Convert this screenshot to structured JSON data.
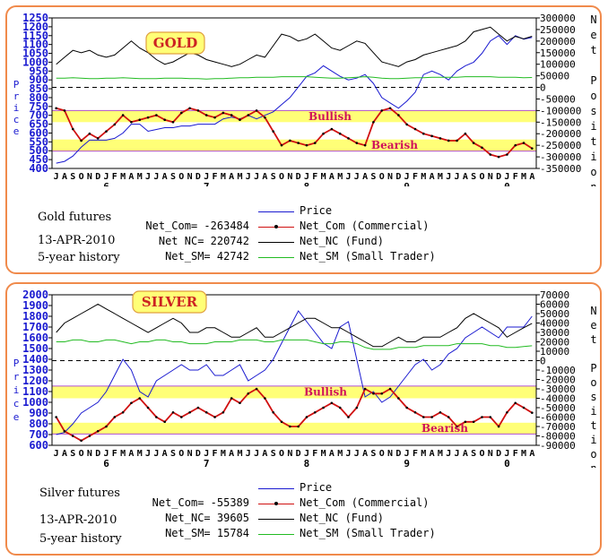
{
  "panels": [
    {
      "id": "gold",
      "badge": "GOLD",
      "caption_title": "Gold futures",
      "caption_date": "13-APR-2010",
      "caption_history": "5-year history",
      "left_side_label": [
        "P",
        "r",
        "i",
        "c",
        "e"
      ],
      "right_side_label": [
        "N",
        "e",
        "t",
        "",
        "P",
        "o",
        "s",
        "i",
        "t",
        "i",
        "o",
        "n"
      ],
      "zones": [
        {
          "label": "Bullish"
        },
        {
          "label": "Bearish"
        }
      ],
      "legend": [
        {
          "value_label": "",
          "name": "Price",
          "color": "#1a1ad0"
        },
        {
          "value_label": "Net_Com= -263484",
          "name": "Net_Com (Commercial)",
          "color": "#d01010"
        },
        {
          "value_label": "Net NC= 220742",
          "name": "Net_NC (Fund)",
          "color": "#000000"
        },
        {
          "value_label": "Net_SM= 42742",
          "name": "Net_SM (Small Trader)",
          "color": "#22bb22"
        }
      ]
    },
    {
      "id": "silver",
      "badge": "SILVER",
      "caption_title": "Silver futures",
      "caption_date": "13-APR-2010",
      "caption_history": "5-year history",
      "left_side_label": [
        "P",
        "r",
        "i",
        "c",
        "e"
      ],
      "right_side_label": [
        "N",
        "e",
        "t",
        "",
        "P",
        "o",
        "s",
        "i",
        "t",
        "i",
        "o",
        "n"
      ],
      "zones": [
        {
          "label": "Bullish"
        },
        {
          "label": "Bearish"
        }
      ],
      "legend": [
        {
          "value_label": "",
          "name": "Price",
          "color": "#1a1ad0"
        },
        {
          "value_label": "Net_Com= -55389",
          "name": "Net_Com (Commercial)",
          "color": "#d01010"
        },
        {
          "value_label": "Net_NC= 39605",
          "name": "Net_NC (Fund)",
          "color": "#000000"
        },
        {
          "value_label": "Net_SM= 15784",
          "name": "Net_SM (Small Trader)",
          "color": "#22bb22"
        }
      ]
    }
  ],
  "chart_data": [
    {
      "type": "line",
      "title": "GOLD",
      "x_month_labels": [
        "J",
        "A",
        "S",
        "O",
        "N",
        "D",
        "J",
        "F",
        "M",
        "A",
        "M",
        "J",
        "J",
        "A",
        "S",
        "O",
        "N",
        "D",
        "J",
        "F",
        "M",
        "A",
        "M",
        "J",
        "J",
        "A",
        "S",
        "O",
        "N",
        "D",
        "J",
        "F",
        "M",
        "A",
        "M",
        "J",
        "J",
        "A",
        "S",
        "O",
        "N",
        "D",
        "J",
        "F",
        "M",
        "A",
        "M",
        "J",
        "J",
        "A",
        "S",
        "O",
        "N",
        "D",
        "J",
        "F",
        "M",
        "A"
      ],
      "x_year_labels": [
        "6",
        "7",
        "8",
        "9",
        "0"
      ],
      "y_left": {
        "ticks": [
          1250,
          1200,
          1150,
          1100,
          1050,
          1000,
          950,
          900,
          850,
          800,
          750,
          700,
          650,
          600,
          550,
          500,
          450,
          400
        ],
        "ylim": [
          400,
          1250
        ]
      },
      "y_right": {
        "ticks": [
          300000,
          250000,
          200000,
          150000,
          100000,
          50000,
          0,
          -50000,
          -100000,
          -150000,
          -200000,
          -250000,
          -300000,
          -350000
        ],
        "ylim": [
          -350000,
          300000
        ]
      },
      "bullish_zone": [
        -100000,
        -150000
      ],
      "bearish_zone": [
        -225000,
        -275000
      ],
      "series": [
        {
          "name": "Price",
          "axis": "left",
          "color": "#1a1ad0",
          "values": [
            430,
            440,
            470,
            520,
            560,
            560,
            560,
            570,
            600,
            650,
            650,
            610,
            620,
            630,
            630,
            640,
            640,
            650,
            650,
            650,
            680,
            690,
            680,
            700,
            680,
            700,
            720,
            760,
            800,
            860,
            920,
            940,
            980,
            950,
            920,
            900,
            910,
            930,
            880,
            800,
            770,
            740,
            780,
            830,
            930,
            950,
            930,
            900,
            950,
            980,
            1000,
            1050,
            1120,
            1150,
            1100,
            1150,
            1130,
            1140
          ]
        },
        {
          "name": "Net_Com (Commercial)",
          "axis": "right",
          "color": "#d01010",
          "values": [
            -90000,
            -100000,
            -180000,
            -230000,
            -200000,
            -220000,
            -190000,
            -160000,
            -120000,
            -150000,
            -140000,
            -130000,
            -120000,
            -140000,
            -150000,
            -110000,
            -90000,
            -100000,
            -120000,
            -130000,
            -110000,
            -120000,
            -140000,
            -120000,
            -100000,
            -130000,
            -190000,
            -250000,
            -230000,
            -240000,
            -250000,
            -240000,
            -200000,
            -180000,
            -200000,
            -220000,
            -240000,
            -250000,
            -150000,
            -100000,
            -90000,
            -120000,
            -160000,
            -180000,
            -200000,
            -210000,
            -220000,
            -230000,
            -230000,
            -200000,
            -240000,
            -260000,
            -290000,
            -300000,
            -290000,
            -250000,
            -240000,
            -263484
          ]
        },
        {
          "name": "Net_NC (Fund)",
          "axis": "right",
          "color": "#000000",
          "values": [
            100000,
            130000,
            160000,
            150000,
            160000,
            140000,
            130000,
            140000,
            170000,
            200000,
            170000,
            150000,
            120000,
            100000,
            110000,
            130000,
            150000,
            140000,
            120000,
            110000,
            100000,
            90000,
            100000,
            120000,
            140000,
            130000,
            180000,
            230000,
            220000,
            200000,
            210000,
            230000,
            200000,
            170000,
            160000,
            180000,
            200000,
            190000,
            150000,
            110000,
            100000,
            90000,
            110000,
            120000,
            140000,
            150000,
            160000,
            170000,
            180000,
            200000,
            240000,
            250000,
            260000,
            230000,
            200000,
            220000,
            210000,
            220742
          ]
        },
        {
          "name": "Net_SM (Small Trader)",
          "axis": "right",
          "color": "#22bb22",
          "values": [
            40000,
            40000,
            42000,
            40000,
            38000,
            38000,
            40000,
            40000,
            42000,
            40000,
            38000,
            38000,
            38000,
            40000,
            40000,
            40000,
            38000,
            38000,
            36000,
            38000,
            38000,
            40000,
            42000,
            42000,
            44000,
            44000,
            44000,
            46000,
            46000,
            46000,
            46000,
            44000,
            42000,
            40000,
            40000,
            42000,
            44000,
            46000,
            44000,
            40000,
            38000,
            38000,
            40000,
            42000,
            42000,
            44000,
            44000,
            44000,
            44000,
            46000,
            46000,
            46000,
            46000,
            44000,
            44000,
            44000,
            42000,
            42742
          ]
        }
      ]
    },
    {
      "type": "line",
      "title": "SILVER",
      "x_month_labels": [
        "J",
        "A",
        "S",
        "O",
        "N",
        "D",
        "J",
        "F",
        "M",
        "A",
        "M",
        "J",
        "J",
        "A",
        "S",
        "O",
        "N",
        "D",
        "J",
        "F",
        "M",
        "A",
        "M",
        "J",
        "J",
        "A",
        "S",
        "O",
        "N",
        "D",
        "J",
        "F",
        "M",
        "A",
        "M",
        "J",
        "J",
        "A",
        "S",
        "O",
        "N",
        "D",
        "J",
        "F",
        "M",
        "A",
        "M",
        "J",
        "J",
        "A",
        "S",
        "O",
        "N",
        "D",
        "J",
        "F",
        "M",
        "A"
      ],
      "x_year_labels": [
        "6",
        "7",
        "8",
        "9",
        "0"
      ],
      "y_left": {
        "ticks": [
          2000,
          1900,
          1800,
          1700,
          1600,
          1500,
          1400,
          1300,
          1200,
          1100,
          1000,
          900,
          800,
          700,
          600
        ],
        "ylim": [
          600,
          2000
        ]
      },
      "y_right": {
        "ticks": [
          70000,
          60000,
          50000,
          40000,
          30000,
          20000,
          10000,
          0,
          -10000,
          -20000,
          -30000,
          -40000,
          -50000,
          -60000,
          -70000,
          -80000,
          -90000
        ],
        "ylim": [
          -90000,
          70000
        ]
      },
      "bullish_zone": [
        -27000,
        -40000
      ],
      "bearish_zone": [
        -66000,
        -78000
      ],
      "series": [
        {
          "name": "Price",
          "axis": "left",
          "color": "#1a1ad0",
          "values": [
            700,
            720,
            800,
            900,
            950,
            1000,
            1100,
            1250,
            1400,
            1300,
            1100,
            1050,
            1200,
            1250,
            1300,
            1350,
            1300,
            1300,
            1350,
            1250,
            1250,
            1300,
            1350,
            1200,
            1250,
            1300,
            1400,
            1550,
            1700,
            1850,
            1750,
            1650,
            1550,
            1500,
            1700,
            1750,
            1400,
            1050,
            1100,
            1000,
            1050,
            1150,
            1250,
            1350,
            1400,
            1300,
            1350,
            1450,
            1500,
            1600,
            1650,
            1700,
            1650,
            1600,
            1700,
            1700,
            1700,
            1800
          ]
        },
        {
          "name": "Net_Com (Commercial)",
          "axis": "right",
          "color": "#d01010",
          "values": [
            -60000,
            -75000,
            -80000,
            -85000,
            -80000,
            -75000,
            -70000,
            -60000,
            -55000,
            -45000,
            -40000,
            -50000,
            -60000,
            -65000,
            -55000,
            -60000,
            -55000,
            -50000,
            -55000,
            -60000,
            -55000,
            -40000,
            -45000,
            -35000,
            -30000,
            -40000,
            -55000,
            -65000,
            -70000,
            -70000,
            -60000,
            -55000,
            -50000,
            -45000,
            -50000,
            -60000,
            -50000,
            -30000,
            -35000,
            -35000,
            -30000,
            -40000,
            -50000,
            -55000,
            -60000,
            -60000,
            -55000,
            -60000,
            -70000,
            -65000,
            -65000,
            -60000,
            -60000,
            -70000,
            -55000,
            -45000,
            -50000,
            -55389
          ]
        },
        {
          "name": "Net_NC (Fund)",
          "axis": "right",
          "color": "#000000",
          "values": [
            30000,
            40000,
            45000,
            50000,
            55000,
            60000,
            55000,
            50000,
            45000,
            40000,
            35000,
            30000,
            35000,
            40000,
            45000,
            40000,
            30000,
            30000,
            35000,
            35000,
            30000,
            25000,
            25000,
            30000,
            35000,
            25000,
            25000,
            30000,
            35000,
            40000,
            45000,
            45000,
            40000,
            35000,
            35000,
            30000,
            25000,
            20000,
            15000,
            15000,
            20000,
            25000,
            20000,
            20000,
            25000,
            25000,
            25000,
            30000,
            35000,
            45000,
            50000,
            45000,
            40000,
            35000,
            25000,
            30000,
            35000,
            39605
          ]
        },
        {
          "name": "Net_SM (Small Trader)",
          "axis": "right",
          "color": "#22bb22",
          "values": [
            20000,
            20000,
            22000,
            22000,
            20000,
            20000,
            22000,
            22000,
            20000,
            18000,
            20000,
            20000,
            22000,
            22000,
            20000,
            20000,
            18000,
            18000,
            18000,
            20000,
            20000,
            20000,
            22000,
            22000,
            22000,
            20000,
            20000,
            22000,
            22000,
            22000,
            22000,
            20000,
            18000,
            18000,
            20000,
            20000,
            18000,
            14000,
            12000,
            12000,
            12000,
            14000,
            14000,
            14000,
            16000,
            16000,
            16000,
            16000,
            18000,
            18000,
            18000,
            18000,
            16000,
            16000,
            14000,
            14000,
            15000,
            15784
          ]
        }
      ]
    }
  ]
}
